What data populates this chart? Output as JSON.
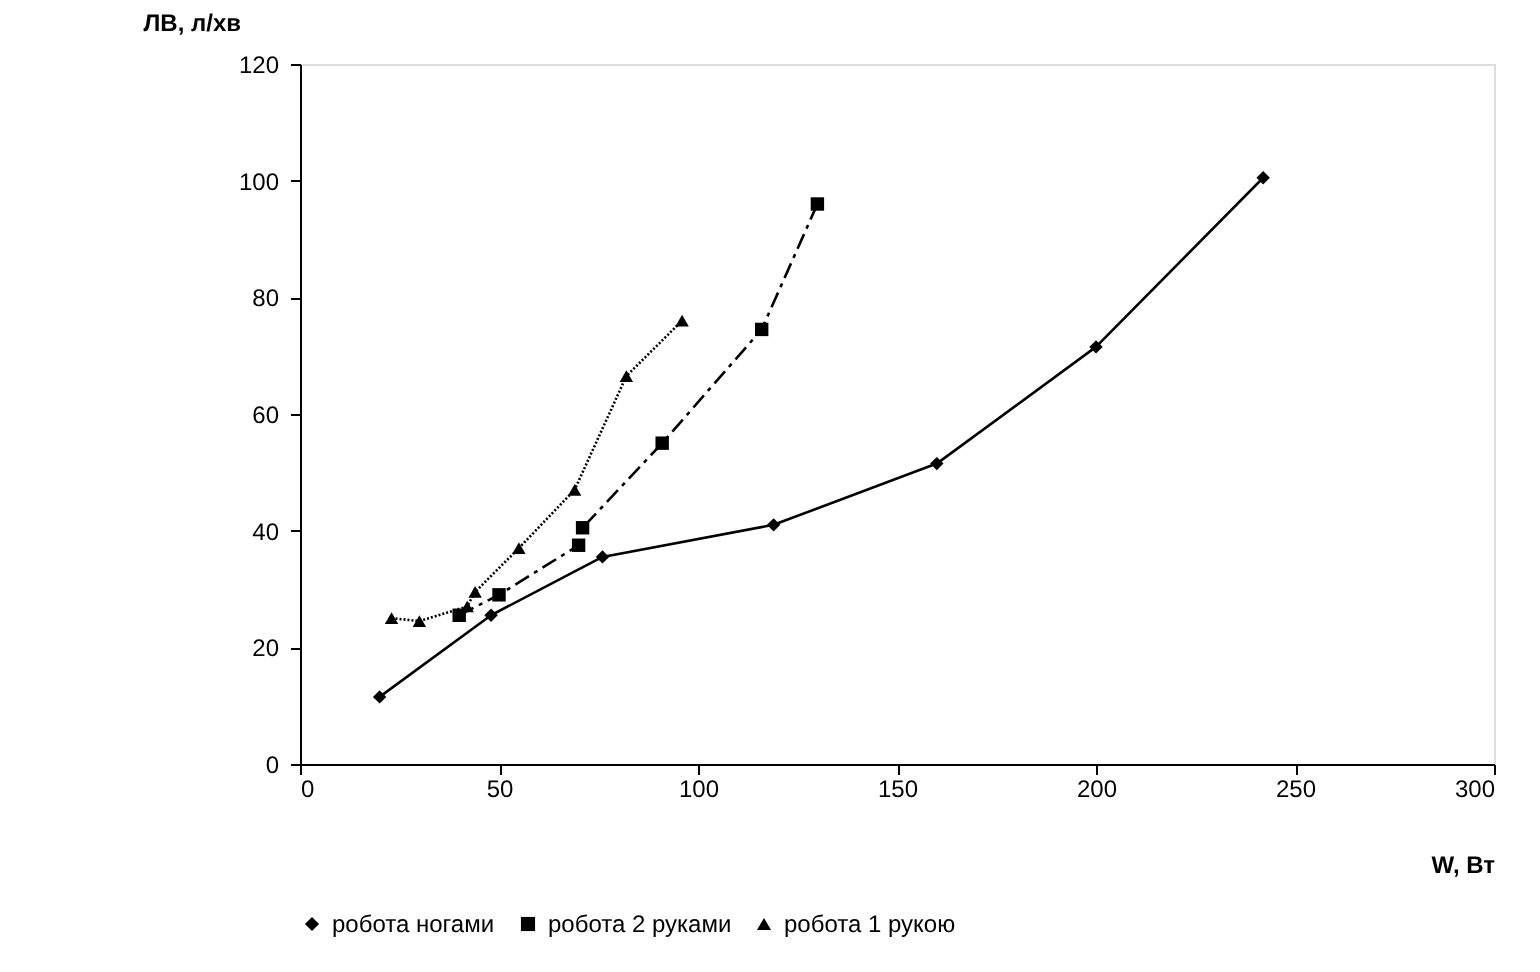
{
  "chart_data": {
    "type": "line",
    "xlabel": "W, Вт",
    "ylabel": "ЛВ, л/хв",
    "xlim": [
      0,
      300
    ],
    "xticks": [
      0,
      50,
      100,
      150,
      200,
      250,
      300
    ],
    "ylim": [
      0,
      120
    ],
    "yticks": [
      0,
      20,
      40,
      60,
      80,
      100,
      120
    ],
    "grid": false,
    "legend": "bottom",
    "series": [
      {
        "name": "робота ногами",
        "color": "#000000",
        "marker": "diamond",
        "line_style": "solid",
        "x": [
          20,
          48,
          76,
          119,
          160,
          200,
          242
        ],
        "values": [
          11.5,
          25.5,
          35.5,
          41,
          51.5,
          71.5,
          100.5
        ]
      },
      {
        "name": "робота 2 руками",
        "color": "#000000",
        "marker": "square",
        "line_style": "dashed",
        "x": [
          40,
          50,
          70,
          71,
          91,
          116,
          130
        ],
        "values": [
          25.5,
          29,
          37.5,
          40.5,
          55,
          74.5,
          96
        ]
      },
      {
        "name": "робота 1 рукою",
        "color": "#000000",
        "marker": "triangle",
        "line_style": "dotted",
        "x": [
          23,
          30,
          42,
          44,
          55,
          69,
          82,
          96
        ],
        "values": [
          25,
          24.5,
          27,
          29.5,
          37,
          47,
          66.5,
          76
        ]
      }
    ]
  }
}
